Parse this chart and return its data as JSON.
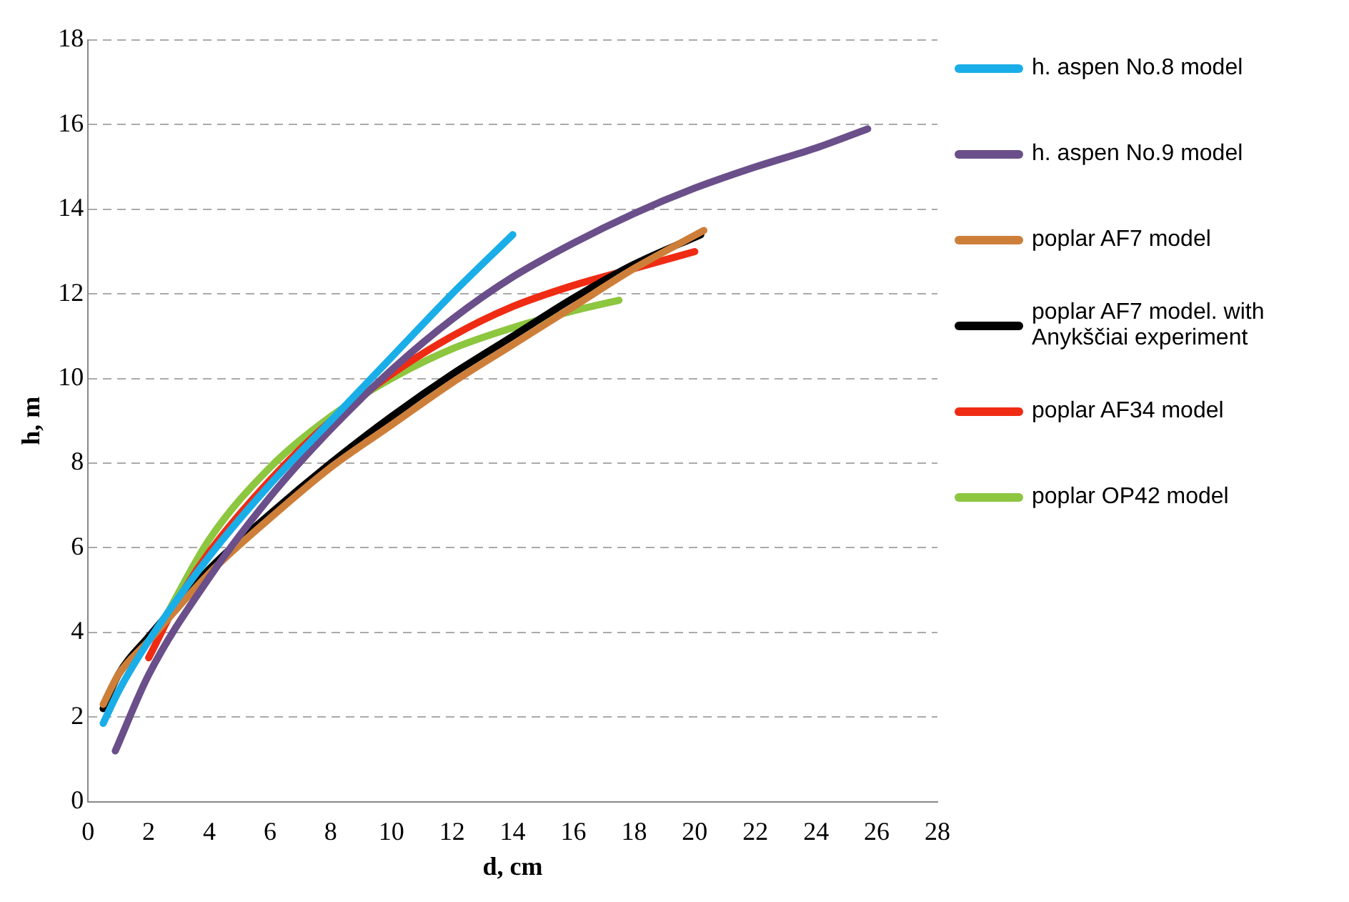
{
  "chart_data": {
    "type": "line",
    "xlabel": "d, cm",
    "ylabel": "h, m",
    "xlim": [
      0,
      28
    ],
    "ylim": [
      0,
      18
    ],
    "xticks": [
      0,
      2,
      4,
      6,
      8,
      10,
      12,
      14,
      16,
      18,
      20,
      22,
      24,
      26,
      28
    ],
    "yticks": [
      0,
      2,
      4,
      6,
      8,
      10,
      12,
      14,
      16,
      18
    ],
    "grid": "y",
    "legend": "right",
    "marker": "none",
    "line_style": "solid",
    "series": [
      {
        "name": "h. aspen No.8 model",
        "color": "#1aaee8",
        "x": [
          0.5,
          1,
          2,
          4,
          6,
          8,
          10,
          12,
          14
        ],
        "values": [
          1.85,
          2.6,
          3.8,
          5.8,
          7.5,
          9.0,
          10.5,
          12.0,
          13.4
        ]
      },
      {
        "name": "h. aspen No.9 model",
        "color": "#6a4f8a",
        "x": [
          0.9,
          2,
          4,
          6,
          8,
          10,
          12,
          14,
          16,
          18,
          20,
          22,
          24,
          25.7
        ],
        "values": [
          1.2,
          3.0,
          5.3,
          7.2,
          8.8,
          10.2,
          11.4,
          12.4,
          13.2,
          13.9,
          14.5,
          15.0,
          15.45,
          15.9
        ]
      },
      {
        "name": "poplar AF7 model",
        "color": "#cd7f3a",
        "x": [
          0.5,
          1,
          2,
          4,
          6,
          8,
          10,
          12,
          14,
          16,
          18,
          20.3
        ],
        "values": [
          2.3,
          3.0,
          3.8,
          5.4,
          6.7,
          7.9,
          8.9,
          9.9,
          10.8,
          11.7,
          12.6,
          13.5
        ]
      },
      {
        "name": "poplar AF7 model. with Anykščiai experiment",
        "color": "#000000",
        "x": [
          0.5,
          1,
          2,
          4,
          6,
          8,
          10,
          12,
          14,
          16,
          18,
          20.2
        ],
        "values": [
          2.2,
          3.0,
          3.9,
          5.5,
          6.8,
          8.0,
          9.1,
          10.1,
          11.0,
          11.9,
          12.7,
          13.4
        ]
      },
      {
        "name": "poplar AF34 model",
        "color": "#f02b14",
        "x": [
          2,
          3,
          4,
          6,
          8,
          10,
          12,
          14,
          16,
          18,
          20
        ],
        "values": [
          3.4,
          4.8,
          5.9,
          7.6,
          9.0,
          10.1,
          11.0,
          11.7,
          12.2,
          12.6,
          13.0
        ]
      },
      {
        "name": "poplar OP42 model",
        "color": "#8dc63f",
        "x": [
          2.5,
          4,
          6,
          8,
          10,
          12,
          14,
          16,
          17.5
        ],
        "values": [
          4.3,
          6.2,
          7.9,
          9.1,
          10.0,
          10.7,
          11.2,
          11.6,
          11.85
        ]
      }
    ]
  }
}
